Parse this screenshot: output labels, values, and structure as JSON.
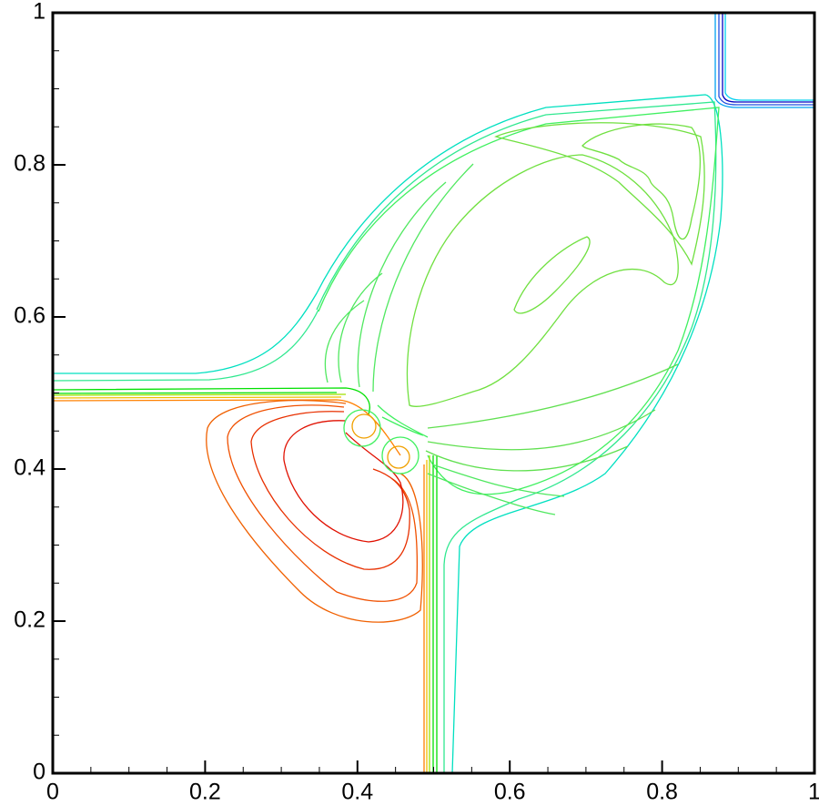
{
  "chart_data": {
    "type": "contour",
    "xlim": [
      0,
      1
    ],
    "ylim": [
      0,
      1
    ],
    "xticks": [
      0,
      0.2,
      0.4,
      0.6,
      0.8,
      1
    ],
    "yticks": [
      0,
      0.2,
      0.4,
      0.6,
      0.8,
      1
    ]
  }
}
